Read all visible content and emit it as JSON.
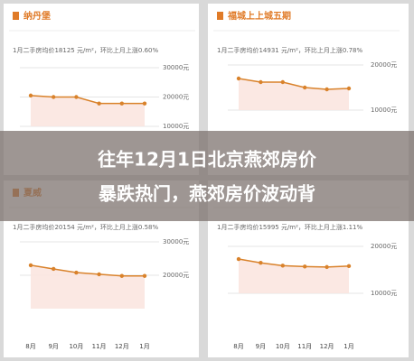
{
  "chart_data": [
    {
      "type": "line",
      "title": "纳丹堡",
      "subtitle": "1月二手房均价18125 元/m²，环比上月上涨0.60%",
      "series": [
        {
          "color": "#d9822b",
          "values": [
            20500,
            20000,
            20000,
            17800,
            17800,
            17800
          ]
        }
      ],
      "ylim": [
        10000,
        30000
      ],
      "yticks": [
        {
          "value": 10000,
          "label": "10000元"
        },
        {
          "value": 20000,
          "label": "20000元"
        },
        {
          "value": 30000,
          "label": "30000元"
        }
      ],
      "grid": true
    },
    {
      "type": "line",
      "title": "福城上上城五期",
      "subtitle": "1月二手房均价14931 元/m²，环比上月上涨0.78%",
      "series": [
        {
          "color": "#d9822b",
          "values": [
            17000,
            16200,
            16200,
            15000,
            14600,
            14800
          ]
        }
      ],
      "ylim": [
        10000,
        20000
      ],
      "yticks": [
        {
          "value": 10000,
          "label": "10000元"
        },
        {
          "value": 20000,
          "label": "20000元"
        }
      ],
      "grid": true
    },
    {
      "type": "line",
      "title": "夏威",
      "subtitle": "1月二手房均价20154 元/m²，环比上月上涨0.58%",
      "categories": [
        "8月",
        "9月",
        "10月",
        "11月",
        "12月",
        "1月"
      ],
      "series": [
        {
          "color": "#d9822b",
          "values": [
            23000,
            21900,
            20800,
            20300,
            19800,
            19800
          ]
        }
      ],
      "ylim": [
        10000,
        30000
      ],
      "yticks": [
        {
          "value": 20000,
          "label": "20000元"
        },
        {
          "value": 30000,
          "label": "30000元"
        }
      ],
      "grid": true
    },
    {
      "type": "line",
      "subtitle": "1月二手房均价15995 元/m²，环比上月上涨1.11%",
      "categories": [
        "8月",
        "9月",
        "10月",
        "11月",
        "12月",
        "1月"
      ],
      "series": [
        {
          "color": "#d9822b",
          "values": [
            17300,
            16500,
            15900,
            15700,
            15600,
            15800
          ]
        }
      ],
      "ylim": [
        10000,
        20000
      ],
      "yticks": [
        {
          "value": 10000,
          "label": "10000元"
        },
        {
          "value": 20000,
          "label": "20000元"
        }
      ],
      "grid": true
    }
  ],
  "overlay": {
    "lines": [
      "往年12月1日北京燕郊房价",
      "暴跌热门，燕郊房价波动背"
    ]
  }
}
